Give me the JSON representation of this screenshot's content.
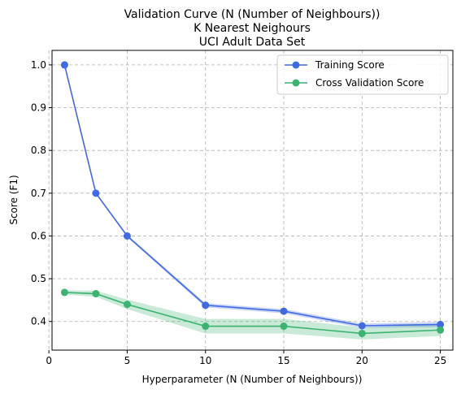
{
  "chart_data": {
    "type": "line",
    "title_lines": [
      "Validation Curve (N (Number of Neighbours))",
      "K Nearest Neighours",
      "UCI Adult Data Set"
    ],
    "xlabel": "Hyperparameter (N (Number of Neighbours))",
    "ylabel": "Score (F1)",
    "xlim": [
      0.2,
      25.8
    ],
    "ylim": [
      0.333,
      1.034
    ],
    "xticks": [
      0,
      5,
      10,
      15,
      20,
      25
    ],
    "yticks": [
      0.4,
      0.5,
      0.6,
      0.7,
      0.8,
      0.9,
      1.0
    ],
    "ytick_labels": [
      "0.4",
      "0.5",
      "0.6",
      "0.7",
      "0.8",
      "0.9",
      "1.0"
    ],
    "grid": true,
    "legend_position": "top-right",
    "x": [
      1,
      3,
      5,
      10,
      15,
      20,
      25
    ],
    "series": [
      {
        "name": "Training Score",
        "color": "#4169e1",
        "values": [
          1.0,
          0.7,
          0.6,
          0.438,
          0.424,
          0.39,
          0.393
        ],
        "band_lower": [
          1.0,
          0.698,
          0.597,
          0.433,
          0.419,
          0.385,
          0.387
        ],
        "band_upper": [
          1.0,
          0.702,
          0.603,
          0.443,
          0.429,
          0.395,
          0.399
        ]
      },
      {
        "name": "Cross Validation Score",
        "color": "#3cb371",
        "values": [
          0.468,
          0.465,
          0.44,
          0.389,
          0.389,
          0.372,
          0.38
        ],
        "band_lower": [
          0.463,
          0.458,
          0.429,
          0.372,
          0.372,
          0.358,
          0.366
        ],
        "band_upper": [
          0.473,
          0.472,
          0.451,
          0.406,
          0.406,
          0.386,
          0.394
        ]
      }
    ]
  }
}
